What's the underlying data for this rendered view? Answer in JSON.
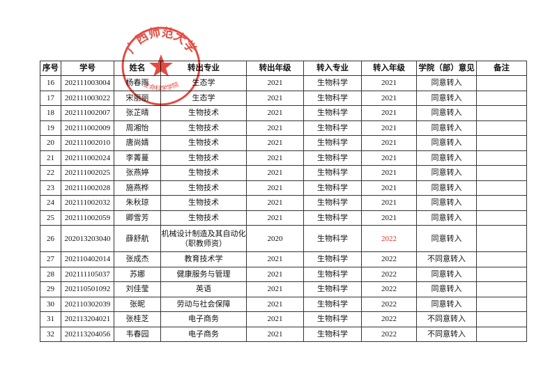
{
  "table": {
    "header": [
      "序号",
      "学号",
      "姓名",
      "转出专业",
      "转出年级",
      "转入专业",
      "转入年级",
      "学院（部）意见",
      "备注"
    ],
    "rows": [
      [
        "16",
        "202111003004",
        "杨春雨",
        "生态学",
        "2021",
        "生物科学",
        "2021",
        "同意转入"
      ],
      [
        "17",
        "202111003022",
        "宋丽丽",
        "生态学",
        "2021",
        "生物科学",
        "2021",
        "同意转入"
      ],
      [
        "18",
        "202111002007",
        "张芷晴",
        "生物技术",
        "2021",
        "生物科学",
        "2021",
        "同意转入"
      ],
      [
        "19",
        "202111002009",
        "周湘怡",
        "生物技术",
        "2021",
        "生物科学",
        "2021",
        "同意转入"
      ],
      [
        "20",
        "202111002010",
        "唐尚婧",
        "生物技术",
        "2021",
        "生物科学",
        "2021",
        "同意转入"
      ],
      [
        "21",
        "202111002024",
        "李菁蔓",
        "生物技术",
        "2021",
        "生物科学",
        "2021",
        "同意转入"
      ],
      [
        "22",
        "202111002025",
        "张燕婷",
        "生物技术",
        "2021",
        "生物科学",
        "2021",
        "同意转入"
      ],
      [
        "23",
        "202111002028",
        "施燕桦",
        "生物技术",
        "2021",
        "生物科学",
        "2021",
        "同意转入"
      ],
      [
        "24",
        "202111002032",
        "朱秋琼",
        "生物技术",
        "2021",
        "生物科学",
        "2021",
        "同意转入"
      ],
      [
        "25",
        "202111002059",
        "卿雪芳",
        "生物技术",
        "2021",
        "生物科学",
        "2021",
        "同意转入"
      ],
      [
        "26",
        "202013203040",
        "薛舒航",
        [
          "机械设计制造及其自动化",
          "（职教师资）"
        ],
        "2020",
        "生物科学",
        "2022",
        "同意转入"
      ],
      [
        "27",
        "202110402014",
        "张成杰",
        "教育技术学",
        "2021",
        "生物科学",
        "2022",
        "不同意转入"
      ],
      [
        "28",
        "202111105037",
        "苏娜",
        "健康服务与管理",
        "2021",
        "生物科学",
        "2022",
        "同意转入"
      ],
      [
        "29",
        "202110501092",
        "刘佳莹",
        "英语",
        "2021",
        "生物科学",
        "2022",
        "同意转入"
      ],
      [
        "30",
        "202110302039",
        "张昵",
        "劳动与社会保障",
        "2021",
        "生物科学",
        "2022",
        "同意转入"
      ],
      [
        "31",
        "202113204021",
        "张桂芝",
        "电子商务",
        "2021",
        "生物科学",
        "2022",
        "不同意转入"
      ],
      [
        "32",
        "202113204056",
        "韦春园",
        "电子商务",
        "2021",
        "生物科学",
        "2022",
        "不同意转入"
      ]
    ]
  },
  "stamp": {
    "outer": "广西师范大学",
    "inner": "生命科学学院"
  }
}
